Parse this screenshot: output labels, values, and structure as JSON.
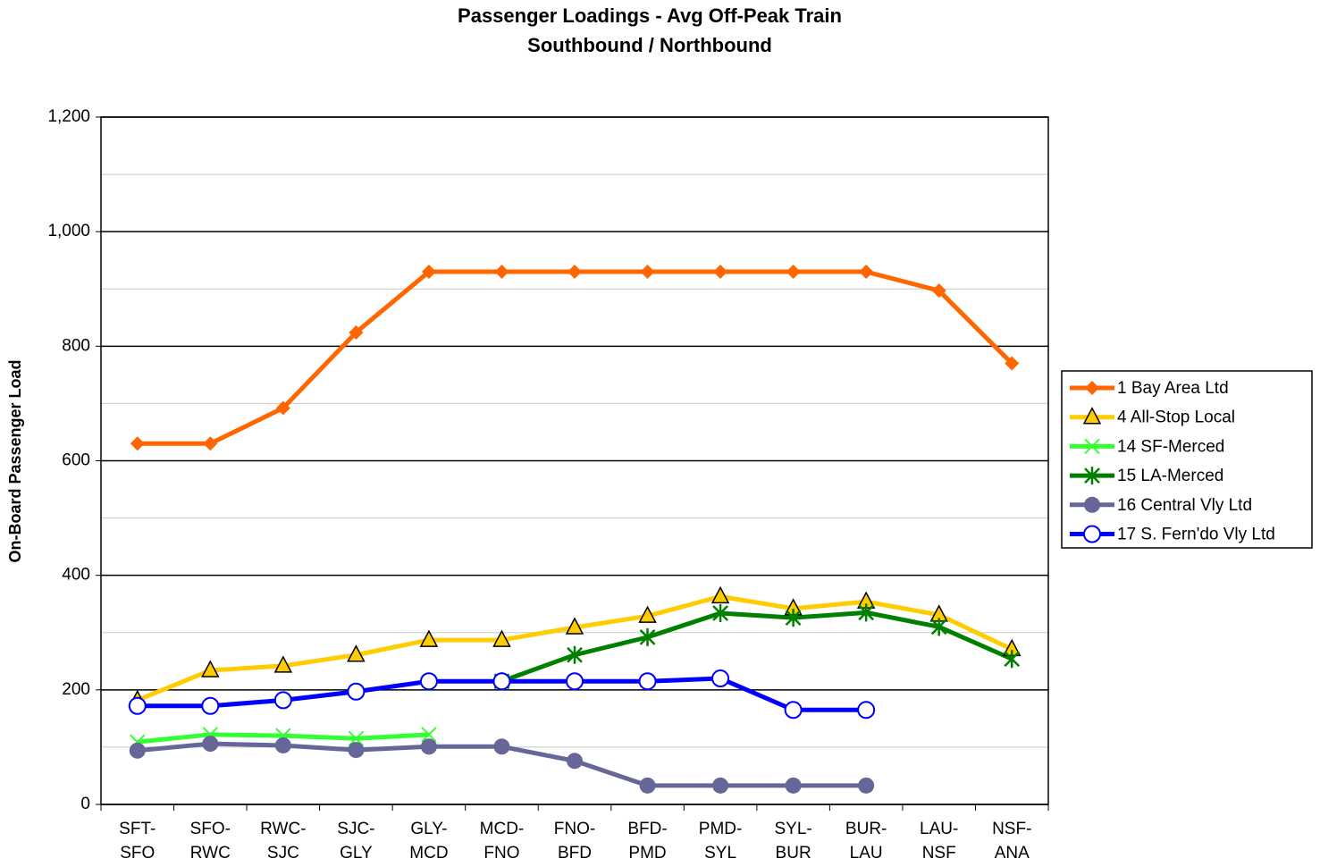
{
  "chart_data": {
    "type": "line",
    "title": "Passenger Loadings - Avg Off-Peak Train",
    "subtitle": "Southbound / Northbound",
    "y_label": "On-Board Passenger Load",
    "categories": [
      "SFT-\nSFO",
      "SFO-\nRWC",
      "RWC-\nSJC",
      "SJC-\nGLY",
      "GLY-\nMCD",
      "MCD-\nFNO",
      "FNO-\nBFD",
      "BFD-\nPMD",
      "PMD-\nSYL",
      "SYL-\nBUR",
      "BUR-\nLAU",
      "LAU-\nNSF",
      "NSF-\nANA"
    ],
    "series": [
      {
        "name": "1 Bay Area Ltd",
        "color": "#ff6600",
        "marker": "diamond",
        "values": [
          630,
          630,
          692,
          824,
          930,
          930,
          930,
          930,
          930,
          930,
          930,
          897,
          770
        ]
      },
      {
        "name": "4 All-Stop Local",
        "color": "#ffcc00",
        "marker": "triangle",
        "values": [
          182,
          234,
          242,
          261,
          287,
          287,
          309,
          329,
          363,
          342,
          354,
          331,
          271
        ]
      },
      {
        "name": "14 SF-Merced",
        "color": "#33ff33",
        "marker": "x",
        "values": [
          109,
          122,
          120,
          115,
          122,
          null,
          null,
          null,
          null,
          null,
          null,
          null,
          null
        ]
      },
      {
        "name": "15 LA-Merced",
        "color": "#008000",
        "marker": "star",
        "values": [
          null,
          null,
          null,
          null,
          null,
          215,
          261,
          292,
          334,
          326,
          335,
          310,
          254
        ]
      },
      {
        "name": "16 Central Vly Ltd",
        "color": "#666699",
        "marker": "circle",
        "values": [
          94,
          106,
          103,
          95,
          101,
          101,
          76,
          33,
          33,
          33,
          33,
          null,
          null
        ]
      },
      {
        "name": "17 S. Fern'do Vly Ltd",
        "color": "#0000ff",
        "marker": "open-circle",
        "values": [
          172,
          172,
          182,
          197,
          215,
          215,
          215,
          215,
          220,
          165,
          165,
          null,
          null
        ]
      }
    ],
    "ylim": [
      0,
      1200
    ],
    "yticks": [
      0,
      200,
      400,
      600,
      800,
      {
        "value": 1000,
        "label": "1,000"
      },
      {
        "value": 1200,
        "label": "1,200"
      }
    ],
    "minor_yticks": [
      100,
      300,
      500,
      700,
      900,
      1100
    ],
    "grid": true,
    "legend": "right"
  }
}
